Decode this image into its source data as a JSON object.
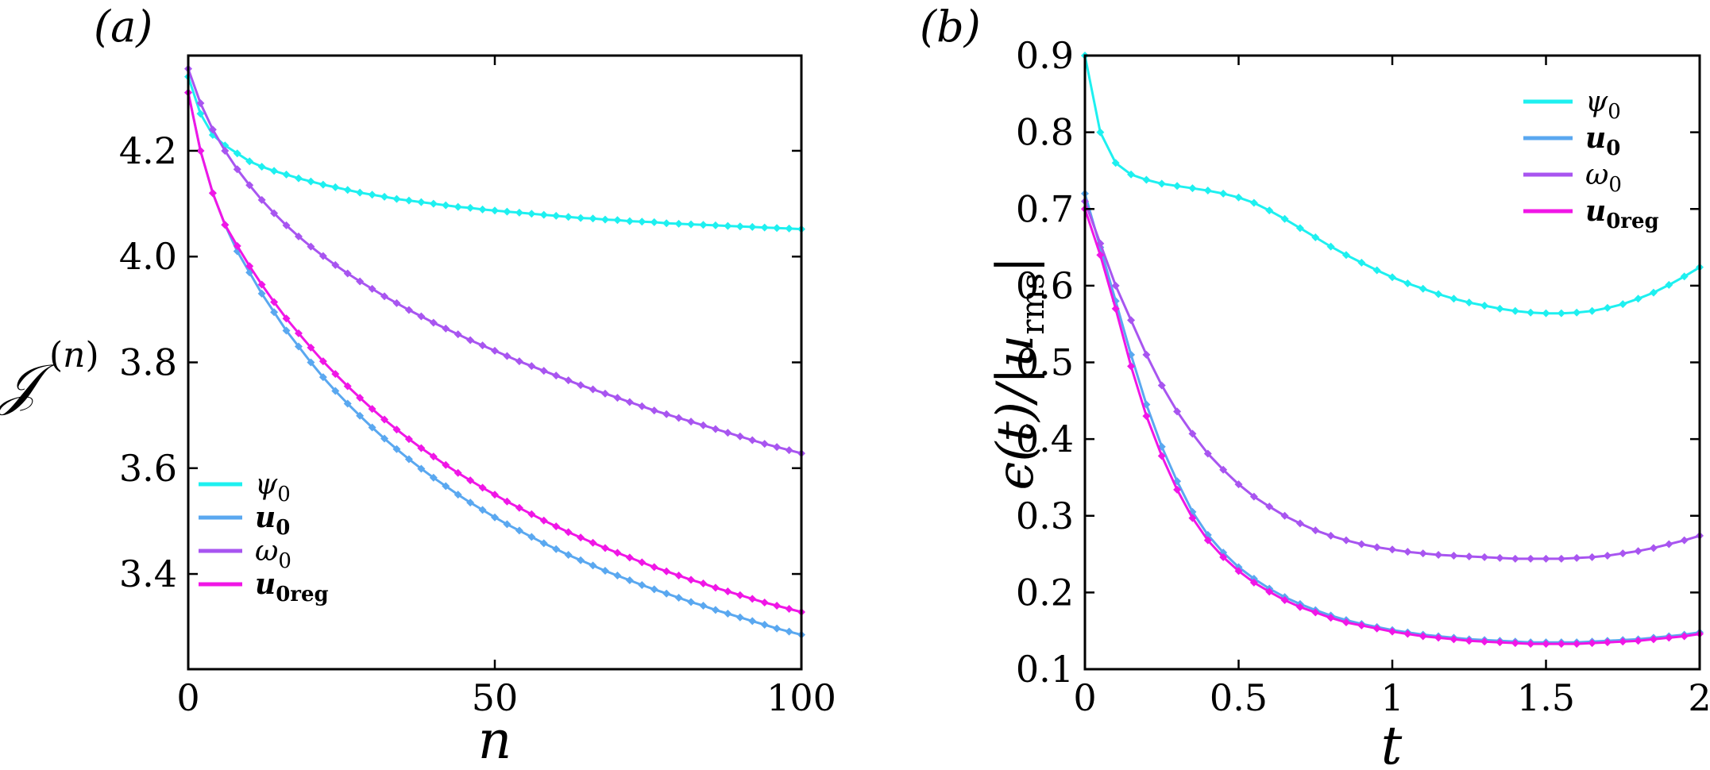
{
  "chart_data": [
    {
      "type": "line",
      "panel_label": "(a)",
      "xlabel": "n",
      "ylabel": "𝒥⁽ⁿ⁾",
      "xlim": [
        0,
        100
      ],
      "ylim": [
        3.22,
        4.38
      ],
      "xticks": [
        0,
        50,
        100
      ],
      "xtick_labels": [
        "0",
        "50",
        "100"
      ],
      "yticks": [
        3.4,
        3.6,
        3.8,
        4.0,
        4.2
      ],
      "ytick_labels": [
        "3.4",
        "3.6",
        "3.8",
        "4.0",
        "4.2"
      ],
      "grid": false,
      "legend_position": "bottom-left",
      "x": [
        0,
        2,
        4,
        6,
        8,
        10,
        12,
        14,
        16,
        18,
        20,
        22,
        24,
        26,
        28,
        30,
        32,
        34,
        36,
        38,
        40,
        42,
        44,
        46,
        48,
        50,
        52,
        54,
        56,
        58,
        60,
        62,
        64,
        66,
        68,
        70,
        72,
        74,
        76,
        78,
        80,
        82,
        84,
        86,
        88,
        90,
        92,
        94,
        96,
        98,
        100
      ],
      "series": [
        {
          "name": "ψ₀",
          "color": "#1EF0F0",
          "values": [
            4.34,
            4.27,
            4.23,
            4.21,
            4.195,
            4.18,
            4.17,
            4.162,
            4.155,
            4.148,
            4.142,
            4.136,
            4.131,
            4.126,
            4.121,
            4.117,
            4.113,
            4.109,
            4.106,
            4.103,
            4.1,
            4.097,
            4.094,
            4.092,
            4.089,
            4.087,
            4.085,
            4.083,
            4.081,
            4.079,
            4.077,
            4.075,
            4.073,
            4.072,
            4.07,
            4.069,
            4.067,
            4.066,
            4.065,
            4.063,
            4.062,
            4.061,
            4.06,
            4.059,
            4.058,
            4.057,
            4.056,
            4.055,
            4.054,
            4.053,
            4.052
          ]
        },
        {
          "name": "u₀",
          "color": "#5AA8F0",
          "values": [
            4.31,
            4.2,
            4.12,
            4.06,
            4.01,
            3.97,
            3.93,
            3.895,
            3.86,
            3.83,
            3.8,
            3.772,
            3.746,
            3.722,
            3.699,
            3.677,
            3.656,
            3.636,
            3.617,
            3.599,
            3.582,
            3.566,
            3.55,
            3.535,
            3.521,
            3.507,
            3.494,
            3.482,
            3.47,
            3.458,
            3.447,
            3.436,
            3.426,
            3.416,
            3.406,
            3.397,
            3.388,
            3.379,
            3.371,
            3.363,
            3.355,
            3.347,
            3.34,
            3.332,
            3.325,
            3.318,
            3.311,
            3.304,
            3.297,
            3.291,
            3.285
          ]
        },
        {
          "name": "ω₀",
          "color": "#A855F0",
          "values": [
            4.355,
            4.29,
            4.24,
            4.2,
            4.165,
            4.135,
            4.107,
            4.082,
            4.059,
            4.038,
            4.019,
            4.001,
            3.984,
            3.968,
            3.953,
            3.939,
            3.925,
            3.912,
            3.899,
            3.887,
            3.875,
            3.864,
            3.853,
            3.842,
            3.832,
            3.822,
            3.812,
            3.802,
            3.793,
            3.784,
            3.775,
            3.766,
            3.757,
            3.749,
            3.741,
            3.733,
            3.725,
            3.717,
            3.709,
            3.702,
            3.695,
            3.688,
            3.681,
            3.674,
            3.667,
            3.66,
            3.653,
            3.646,
            3.64,
            3.634,
            3.628
          ]
        },
        {
          "name": "u₀ᵣₑ𝓰",
          "color": "#F016E6",
          "values": [
            4.31,
            4.2,
            4.12,
            4.06,
            4.02,
            3.982,
            3.947,
            3.914,
            3.883,
            3.855,
            3.828,
            3.802,
            3.778,
            3.755,
            3.733,
            3.712,
            3.692,
            3.673,
            3.655,
            3.638,
            3.622,
            3.606,
            3.591,
            3.577,
            3.563,
            3.55,
            3.537,
            3.525,
            3.513,
            3.501,
            3.49,
            3.479,
            3.469,
            3.459,
            3.449,
            3.44,
            3.431,
            3.422,
            3.413,
            3.405,
            3.397,
            3.389,
            3.382,
            3.374,
            3.367,
            3.36,
            3.353,
            3.346,
            3.34,
            3.334,
            3.328
          ]
        }
      ],
      "legend": [
        {
          "label": "ψ",
          "sub": "0",
          "bold": false
        },
        {
          "label": "u",
          "sub": "0",
          "bold": true
        },
        {
          "label": "ω",
          "sub": "0",
          "bold": false
        },
        {
          "label": "u",
          "sub": "0reg",
          "bold": true
        }
      ]
    },
    {
      "type": "line",
      "panel_label": "(b)",
      "xlabel": "t",
      "ylabel": "ϵ(t)/|u_rms|",
      "xlim": [
        0,
        2
      ],
      "ylim": [
        0.1,
        0.9
      ],
      "xticks": [
        0,
        0.5,
        1,
        1.5,
        2
      ],
      "xtick_labels": [
        "0",
        "0.5",
        "1",
        "1.5",
        "2"
      ],
      "yticks": [
        0.1,
        0.2,
        0.3,
        0.4,
        0.5,
        0.6,
        0.7,
        0.8,
        0.9
      ],
      "ytick_labels": [
        "0.1",
        "0.2",
        "0.3",
        "0.4",
        "0.5",
        "0.6",
        "0.7",
        "0.8",
        "0.9"
      ],
      "grid": false,
      "legend_position": "top-right",
      "x": [
        0,
        0.05,
        0.1,
        0.15,
        0.2,
        0.25,
        0.3,
        0.35,
        0.4,
        0.45,
        0.5,
        0.55,
        0.6,
        0.65,
        0.7,
        0.75,
        0.8,
        0.85,
        0.9,
        0.95,
        1.0,
        1.05,
        1.1,
        1.15,
        1.2,
        1.25,
        1.3,
        1.35,
        1.4,
        1.45,
        1.5,
        1.55,
        1.6,
        1.65,
        1.7,
        1.75,
        1.8,
        1.85,
        1.9,
        1.95,
        2.0
      ],
      "series": [
        {
          "name": "ψ₀",
          "color": "#1EF0F0",
          "values": [
            0.9,
            0.8,
            0.76,
            0.745,
            0.738,
            0.733,
            0.73,
            0.727,
            0.724,
            0.72,
            0.715,
            0.708,
            0.698,
            0.687,
            0.675,
            0.663,
            0.651,
            0.64,
            0.63,
            0.62,
            0.611,
            0.603,
            0.596,
            0.589,
            0.583,
            0.578,
            0.574,
            0.57,
            0.567,
            0.565,
            0.564,
            0.564,
            0.565,
            0.567,
            0.571,
            0.576,
            0.583,
            0.591,
            0.601,
            0.612,
            0.624
          ]
        },
        {
          "name": "u₀",
          "color": "#5AA8F0",
          "values": [
            0.72,
            0.65,
            0.58,
            0.51,
            0.445,
            0.39,
            0.345,
            0.305,
            0.275,
            0.252,
            0.233,
            0.218,
            0.205,
            0.194,
            0.185,
            0.177,
            0.17,
            0.164,
            0.159,
            0.155,
            0.151,
            0.148,
            0.145,
            0.143,
            0.141,
            0.139,
            0.138,
            0.137,
            0.136,
            0.135,
            0.135,
            0.135,
            0.135,
            0.136,
            0.137,
            0.138,
            0.139,
            0.141,
            0.143,
            0.145,
            0.148
          ]
        },
        {
          "name": "ω₀",
          "color": "#A855F0",
          "values": [
            0.71,
            0.655,
            0.6,
            0.555,
            0.51,
            0.47,
            0.436,
            0.407,
            0.381,
            0.36,
            0.341,
            0.325,
            0.312,
            0.3,
            0.29,
            0.281,
            0.274,
            0.268,
            0.263,
            0.259,
            0.256,
            0.253,
            0.251,
            0.249,
            0.248,
            0.247,
            0.246,
            0.245,
            0.244,
            0.244,
            0.244,
            0.244,
            0.245,
            0.246,
            0.248,
            0.251,
            0.254,
            0.258,
            0.263,
            0.268,
            0.274
          ]
        },
        {
          "name": "u₀ᵣₑ𝓰",
          "color": "#F016E6",
          "values": [
            0.7,
            0.64,
            0.57,
            0.495,
            0.43,
            0.378,
            0.334,
            0.297,
            0.268,
            0.246,
            0.228,
            0.213,
            0.201,
            0.19,
            0.181,
            0.174,
            0.167,
            0.161,
            0.157,
            0.153,
            0.149,
            0.146,
            0.143,
            0.141,
            0.139,
            0.137,
            0.136,
            0.135,
            0.134,
            0.133,
            0.133,
            0.133,
            0.133,
            0.134,
            0.135,
            0.136,
            0.137,
            0.139,
            0.141,
            0.143,
            0.146
          ]
        }
      ],
      "legend": [
        {
          "label": "ψ",
          "sub": "0",
          "bold": false
        },
        {
          "label": "u",
          "sub": "0",
          "bold": true
        },
        {
          "label": "ω",
          "sub": "0",
          "bold": false
        },
        {
          "label": "u",
          "sub": "0reg",
          "bold": true
        }
      ]
    }
  ]
}
